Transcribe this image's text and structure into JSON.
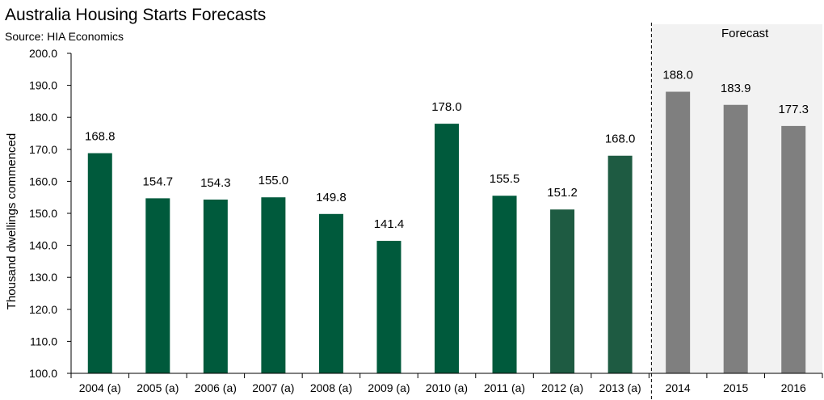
{
  "chart_data": {
    "type": "bar",
    "title": "Australia Housing Starts Forecasts",
    "subtitle": "Source: HIA Economics",
    "ylabel": "Thousand dwellings commenced",
    "xlabel": "",
    "ylim": [
      100,
      200
    ],
    "yticks": [
      "100.0",
      "110.0",
      "120.0",
      "130.0",
      "140.0",
      "150.0",
      "160.0",
      "170.0",
      "180.0",
      "190.0",
      "200.0"
    ],
    "categories": [
      "2004 (a)",
      "2005 (a)",
      "2006 (a)",
      "2007 (a)",
      "2008 (a)",
      "2009 (a)",
      "2010 (a)",
      "2011 (a)",
      "2012 (a)",
      "2013 (a)",
      "2014",
      "2015",
      "2016"
    ],
    "values": [
      168.8,
      154.7,
      154.3,
      155.0,
      149.8,
      141.4,
      178.0,
      155.5,
      151.2,
      168.0,
      188.0,
      183.9,
      177.3
    ],
    "value_labels": [
      "168.8",
      "154.7",
      "154.3",
      "155.0",
      "149.8",
      "141.4",
      "178.0",
      "155.5",
      "151.2",
      "168.0",
      "188.0",
      "183.9",
      "177.3"
    ],
    "forecast_label": "Forecast",
    "forecast_start_index": 10,
    "colors": {
      "actual": "#005A3C",
      "actual_late": "#1E5B42",
      "forecast": "#7F7F7F",
      "forecast_bg": "#F2F2F2"
    },
    "grid": false,
    "legend": "none"
  }
}
